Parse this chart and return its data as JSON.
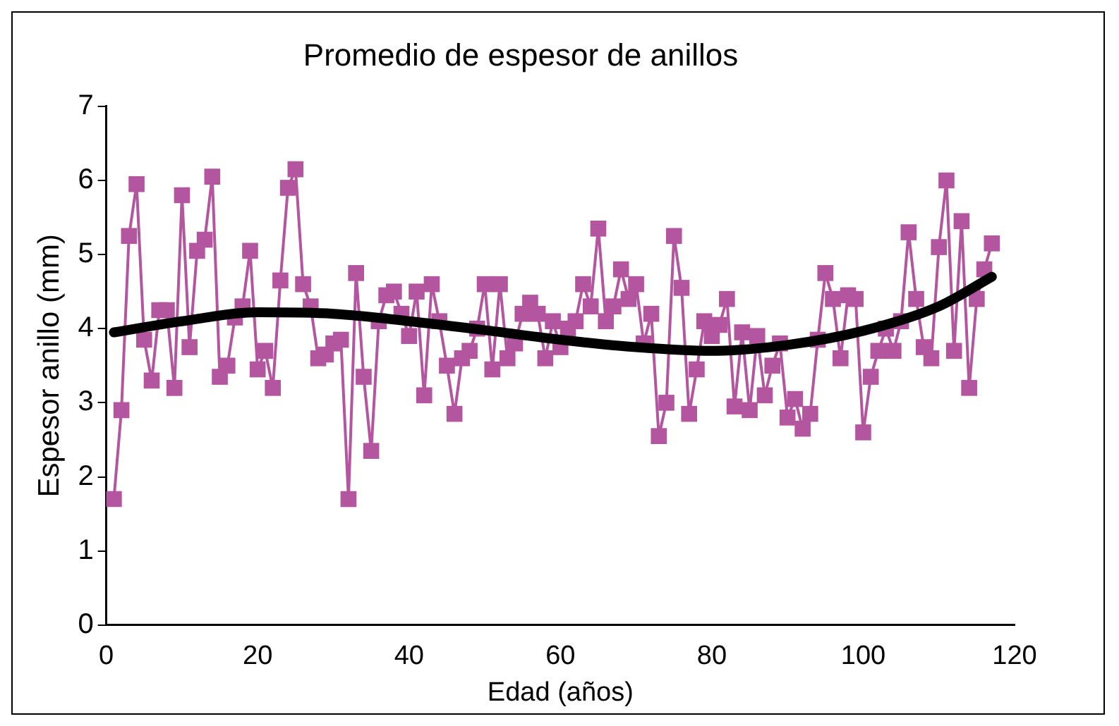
{
  "chart_data": {
    "type": "line",
    "title": "Promedio de espesor de anillos",
    "xlabel": "Edad (años)",
    "ylabel": "Espesor anillo (mm)",
    "xlim": [
      0,
      120
    ],
    "xticks": [
      0,
      20,
      40,
      60,
      80,
      100,
      120
    ],
    "ylim": [
      0,
      7
    ],
    "yticks": [
      0,
      1,
      2,
      3,
      4,
      5,
      6,
      7
    ],
    "grid": false,
    "legend": false,
    "series": [
      {
        "color": "#b455a0",
        "marker": "square",
        "x": [
          1,
          2,
          3,
          4,
          5,
          6,
          7,
          8,
          9,
          10,
          11,
          12,
          13,
          14,
          15,
          16,
          17,
          18,
          19,
          20,
          21,
          22,
          23,
          24,
          25,
          26,
          27,
          28,
          29,
          30,
          31,
          32,
          33,
          34,
          35,
          36,
          37,
          38,
          39,
          40,
          41,
          42,
          43,
          44,
          45,
          46,
          47,
          48,
          49,
          50,
          51,
          52,
          53,
          54,
          55,
          56,
          57,
          58,
          59,
          60,
          61,
          62,
          63,
          64,
          65,
          66,
          67,
          68,
          69,
          70,
          71,
          72,
          73,
          74,
          75,
          76,
          77,
          78,
          79,
          80,
          81,
          82,
          83,
          84,
          85,
          86,
          87,
          88,
          89,
          90,
          91,
          92,
          93,
          94,
          95,
          96,
          97,
          98,
          99,
          100,
          101,
          102,
          103,
          104,
          105,
          106,
          107,
          108,
          109,
          110,
          111,
          112,
          113,
          114,
          115,
          116,
          117
        ],
        "values": [
          1.7,
          2.9,
          5.25,
          5.95,
          3.85,
          3.3,
          4.25,
          4.25,
          3.2,
          5.8,
          3.75,
          5.05,
          5.2,
          6.05,
          3.35,
          3.5,
          4.15,
          4.3,
          5.05,
          3.45,
          3.7,
          3.2,
          4.65,
          5.9,
          6.15,
          4.6,
          4.3,
          3.6,
          3.65,
          3.8,
          3.85,
          1.7,
          4.75,
          3.35,
          2.35,
          4.1,
          4.45,
          4.5,
          4.2,
          3.9,
          4.5,
          3.1,
          4.6,
          4.1,
          3.5,
          2.85,
          3.6,
          3.7,
          4.0,
          4.6,
          3.45,
          4.6,
          3.6,
          3.8,
          4.2,
          4.35,
          4.2,
          3.6,
          4.1,
          3.75,
          4.0,
          4.1,
          4.6,
          4.3,
          5.35,
          4.1,
          4.3,
          4.8,
          4.4,
          4.6,
          3.8,
          4.2,
          2.55,
          3.0,
          5.25,
          4.55,
          2.85,
          3.45,
          4.1,
          3.9,
          4.05,
          4.4,
          2.95,
          3.95,
          2.9,
          3.9,
          3.1,
          3.5,
          3.8,
          2.8,
          3.05,
          2.65,
          2.85,
          3.85,
          4.75,
          4.4,
          3.6,
          4.45,
          4.4,
          2.6,
          3.35,
          3.7,
          4.0,
          3.7,
          4.1,
          5.3,
          4.4,
          3.75,
          3.6,
          5.1,
          6.0,
          3.7,
          5.45,
          3.2,
          4.4,
          4.8,
          5.15
        ]
      },
      {
        "color": "#000000",
        "marker": "none",
        "x": [
          1,
          10,
          20,
          30,
          40,
          50,
          60,
          70,
          80,
          90,
          100,
          110,
          117
        ],
        "values": [
          3.95,
          4.1,
          4.22,
          4.2,
          4.1,
          3.98,
          3.85,
          3.75,
          3.7,
          3.78,
          3.97,
          4.3,
          4.7
        ]
      }
    ]
  }
}
